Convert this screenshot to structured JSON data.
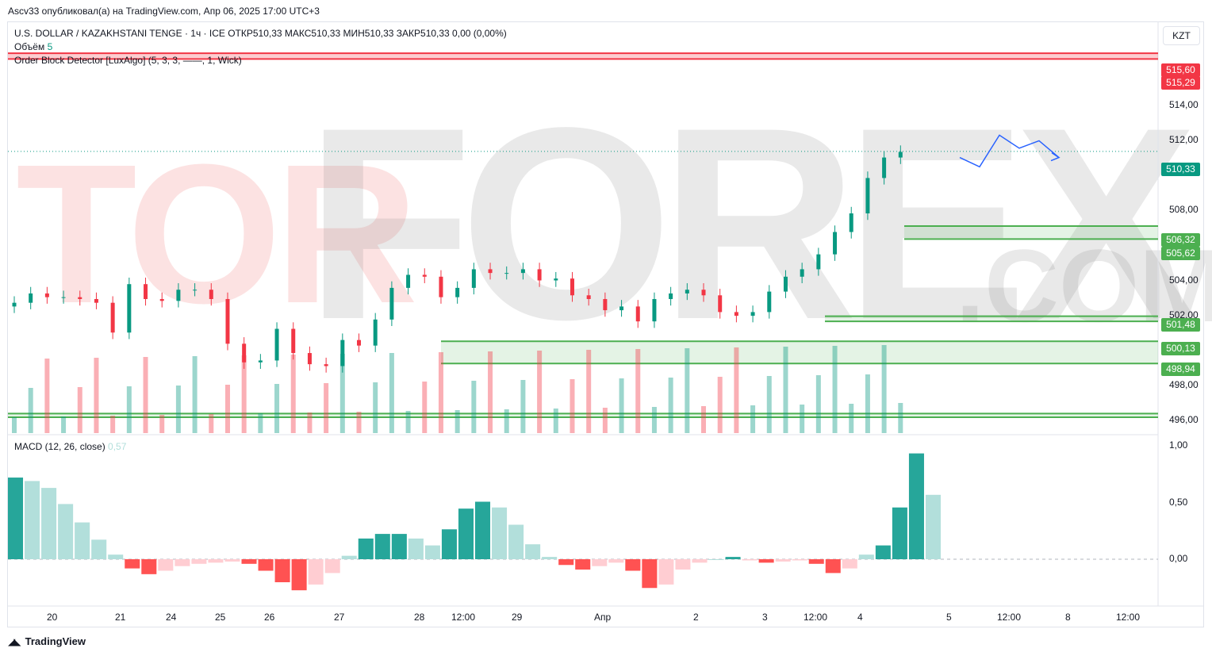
{
  "header": {
    "published_text": "Ascv33 опубликовал(а) на TradingView.com, Апр 06, 2025 17:00 UTC+3"
  },
  "legend": {
    "symbol_line": "U.S. DOLLAR / KAZAKHSTANI TENGE · 1ч · ICE  ОТКР510,33  МАКС510,33  МИН510,33  ЗАКР510,33  0,00 (0,00%)",
    "volume_label": "Объём",
    "volume_value": "5",
    "indicator_line": "Order Block Detector [LuxAlgo] (5, 3, 3, ——, 1, Wick)",
    "macd_label": "MACD (12, 26, close)",
    "macd_value": "0,57"
  },
  "currency_button": "KZT",
  "price_axis": [
    "514,00",
    "512,00",
    "508,00",
    "504,00",
    "502,00",
    "498,00",
    "496,00"
  ],
  "price_labels": [
    {
      "text": "515,60",
      "color": "#f23645"
    },
    {
      "text": "515,29",
      "color": "#f23645"
    },
    {
      "text": "510,33",
      "color": "#089981"
    },
    {
      "text": "506,32",
      "color": "#4caf50"
    },
    {
      "text": "505,62",
      "color": "#4caf50"
    },
    {
      "text": "501,48",
      "color": "#4caf50"
    },
    {
      "text": "500,13",
      "color": "#4caf50"
    },
    {
      "text": "498,94",
      "color": "#4caf50"
    }
  ],
  "macd_axis": [
    "1,00",
    "0,50",
    "0,00"
  ],
  "time_axis": [
    "20",
    "21",
    "24",
    "25",
    "26",
    "27",
    "28",
    "12:00",
    "29",
    "Апр",
    "2",
    "3",
    "12:00",
    "4",
    "5",
    "12:00",
    "8",
    "12:00"
  ],
  "watermark": {
    "part1": "TOR",
    "part2": "FOREX",
    "part3": ".COM"
  },
  "footer": {
    "brand": "TradingView"
  },
  "colors": {
    "up": "#089981",
    "down": "#f23645",
    "zone_green": "#4caf50",
    "projection": "#2962ff"
  },
  "chart_data": {
    "type": "candlestick",
    "symbol": "USDKZT",
    "timeframe": "1ч",
    "ohlc_last": {
      "open": 510.33,
      "high": 510.33,
      "low": 510.33,
      "close": 510.33
    },
    "price_range": [
      495.2,
      516.5
    ],
    "macd_range": [
      -0.32,
      1.0
    ],
    "closes": [
      502.2,
      502.7,
      502.5,
      502.5,
      502.4,
      502.2,
      500.6,
      503.2,
      502.4,
      502.3,
      502.9,
      502.9,
      502.4,
      500.0,
      499.0,
      499.1,
      500.8,
      499.5,
      498.9,
      498.8,
      500.2,
      499.9,
      501.3,
      503.0,
      503.7,
      503.6,
      502.5,
      503.0,
      504.0,
      503.8,
      503.8,
      504.0,
      503.4,
      503.5,
      502.6,
      502.4,
      501.8,
      502.0,
      501.2,
      502.4,
      502.7,
      502.9,
      502.6,
      501.7,
      501.5,
      501.7,
      502.8,
      503.6,
      504.0,
      504.8,
      506.0,
      507.0,
      508.9,
      510.0,
      510.3
    ],
    "order_blocks": [
      {
        "top": 515.6,
        "bottom": 515.29,
        "type": "bearish"
      },
      {
        "top": 506.32,
        "bottom": 505.62,
        "type": "bullish"
      },
      {
        "top": 501.48,
        "bottom": 501.2,
        "type": "bullish"
      },
      {
        "top": 500.13,
        "bottom": 498.94,
        "type": "bullish"
      },
      {
        "top": 496.25,
        "bottom": 496.05,
        "type": "bullish"
      }
    ],
    "macd_hist": [
      0.71,
      0.68,
      0.62,
      0.48,
      0.32,
      0.17,
      0.04,
      -0.08,
      -0.13,
      -0.1,
      -0.06,
      -0.04,
      -0.03,
      -0.02,
      -0.04,
      -0.1,
      -0.2,
      -0.27,
      -0.22,
      -0.12,
      0.03,
      0.18,
      0.22,
      0.22,
      0.18,
      0.12,
      0.26,
      0.44,
      0.5,
      0.45,
      0.3,
      0.13,
      0.02,
      -0.05,
      -0.09,
      -0.06,
      -0.03,
      -0.1,
      -0.25,
      -0.22,
      -0.09,
      -0.03,
      0.0,
      0.02,
      -0.01,
      -0.03,
      -0.02,
      -0.01,
      -0.04,
      -0.12,
      -0.08,
      0.04,
      0.12,
      0.45,
      0.92,
      0.56
    ],
    "projection": [
      510.0,
      509.5,
      511.2,
      510.5,
      510.9,
      510.0
    ]
  }
}
